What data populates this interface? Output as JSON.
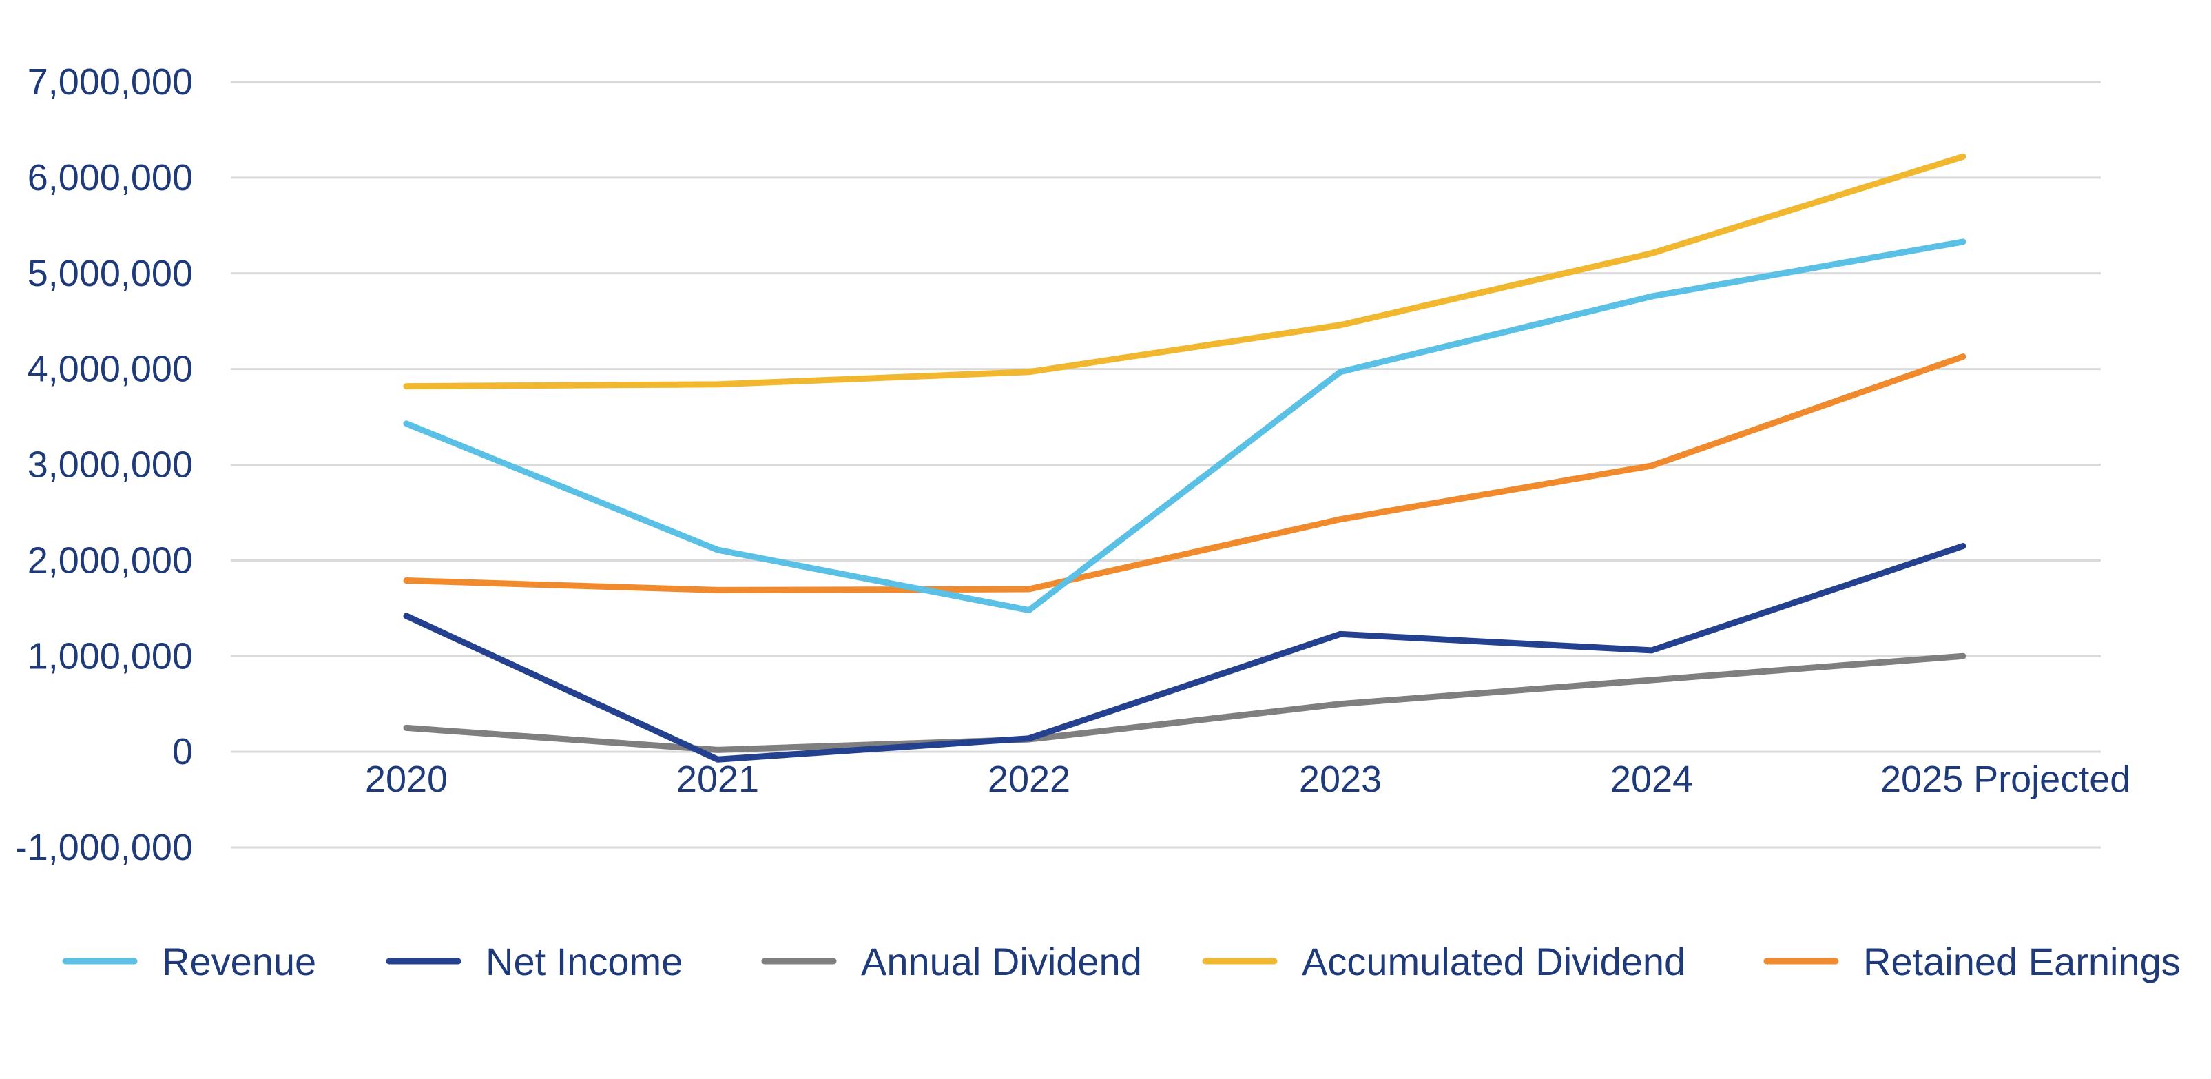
{
  "chart_data": {
    "type": "line",
    "title": "",
    "xlabel": "",
    "ylabel": "",
    "categories": [
      "2020",
      "2021",
      "2022",
      "2023",
      "2024",
      "2025 Projected"
    ],
    "y_ticks": [
      7000000,
      6000000,
      5000000,
      4000000,
      3000000,
      2000000,
      1000000,
      0,
      -1000000
    ],
    "y_tick_labels": [
      "7,000,000",
      "6,000,000",
      "5,000,000",
      "4,000,000",
      "3,000,000",
      "2,000,000",
      "1,000,000",
      "0",
      "-1,000,000"
    ],
    "ylim": [
      -1000000,
      7000000
    ],
    "grid": true,
    "legend_position": "bottom",
    "series": [
      {
        "name": "Revenue",
        "color": "#5bc0e6",
        "values": [
          3430000,
          2110000,
          1480000,
          3970000,
          4760000,
          5330000
        ]
      },
      {
        "name": "Net Income",
        "color": "#23418f",
        "values": [
          1420000,
          -80000,
          140000,
          1230000,
          1060000,
          2150000
        ]
      },
      {
        "name": "Annual Dividend",
        "color": "#7f7f7f",
        "values": [
          250000,
          20000,
          130000,
          500000,
          750000,
          1000000
        ]
      },
      {
        "name": "Accumulated Dividend",
        "color": "#f0b72f",
        "values": [
          3820000,
          3840000,
          3970000,
          4460000,
          5210000,
          6220000
        ]
      },
      {
        "name": "Retained Earnings",
        "color": "#f08a2c",
        "values": [
          1790000,
          1690000,
          1700000,
          2430000,
          2990000,
          4130000
        ]
      }
    ]
  }
}
